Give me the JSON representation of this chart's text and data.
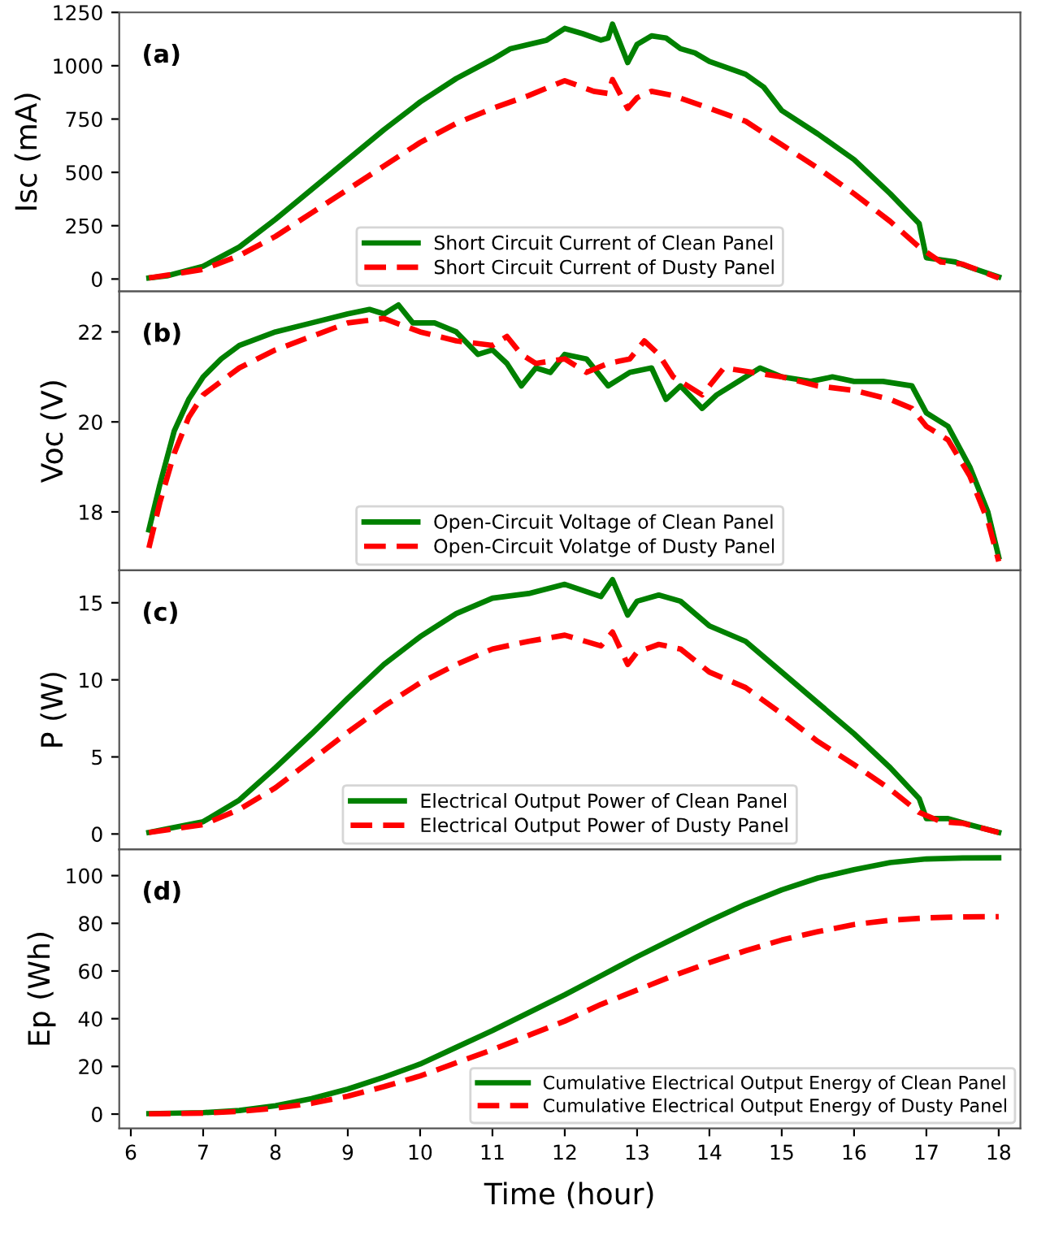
{
  "chart_data": [
    {
      "type": "line",
      "ylabel": "Isc (mA)",
      "annotations": [
        "(a)"
      ],
      "xlim": [
        5.84,
        18.3
      ],
      "xticks": [
        6,
        7,
        8,
        9,
        10,
        11,
        12,
        13,
        14,
        15,
        16,
        17,
        18
      ],
      "ylim": [
        -58,
        1250
      ],
      "yticks": [
        0,
        250,
        500,
        750,
        1000,
        1250
      ],
      "tick_labels": "y",
      "legend": "bottom",
      "grid": false,
      "series": [
        {
          "name": "Short Circuit Current of Clean Panel",
          "color": "#008000",
          "line_style": "solid",
          "x": [
            6.25,
            6.5,
            7,
            7.5,
            8,
            8.5,
            9,
            9.5,
            10,
            10.5,
            11,
            11.25,
            11.5,
            11.75,
            12,
            12.25,
            12.5,
            12.6,
            12.66,
            12.87,
            13,
            13.2,
            13.4,
            13.6,
            13.8,
            14,
            14.5,
            14.75,
            15,
            15.5,
            16,
            16.5,
            16.9,
            17.0,
            17.2,
            17.4,
            17.6,
            18
          ],
          "values": [
            5,
            15,
            60,
            150,
            280,
            420,
            560,
            700,
            830,
            940,
            1030,
            1080,
            1100,
            1120,
            1175,
            1150,
            1120,
            1130,
            1195,
            1015,
            1100,
            1140,
            1130,
            1080,
            1060,
            1020,
            960,
            900,
            790,
            680,
            560,
            400,
            260,
            100,
            90,
            80,
            55,
            10
          ]
        },
        {
          "name": "Short Circuit Current of Dusty Panel",
          "color": "#ff0000",
          "line_style": "dashed",
          "x": [
            6.25,
            7,
            7.5,
            8,
            8.5,
            9,
            9.5,
            10,
            10.5,
            11,
            11.5,
            12,
            12.4,
            12.6,
            12.66,
            12.87,
            13,
            13.2,
            13.5,
            14,
            14.5,
            15,
            15.5,
            16,
            16.5,
            16.9,
            17.2,
            17.5,
            18
          ],
          "values": [
            5,
            45,
            110,
            200,
            310,
            420,
            530,
            640,
            730,
            800,
            860,
            930,
            880,
            870,
            935,
            800,
            850,
            880,
            860,
            800,
            740,
            630,
            520,
            400,
            270,
            150,
            80,
            70,
            5
          ]
        }
      ]
    },
    {
      "type": "line",
      "ylabel": "Voc (V)",
      "annotations": [
        "(b)"
      ],
      "xlim": [
        5.84,
        18.3
      ],
      "xticks": [
        6,
        7,
        8,
        9,
        10,
        11,
        12,
        13,
        14,
        15,
        16,
        17,
        18
      ],
      "ylim": [
        16.7,
        22.9
      ],
      "yticks": [
        18,
        20,
        22
      ],
      "tick_labels": "y",
      "legend": "bottom",
      "grid": false,
      "series": [
        {
          "name": "Open-Circuit Voltage of Clean Panel",
          "color": "#008000",
          "line_style": "solid",
          "x": [
            6.25,
            6.4,
            6.6,
            6.8,
            7,
            7.25,
            7.5,
            8,
            8.5,
            9,
            9.3,
            9.5,
            9.7,
            9.9,
            10.2,
            10.5,
            10.8,
            11,
            11.2,
            11.4,
            11.6,
            11.8,
            12,
            12.3,
            12.6,
            12.9,
            13.2,
            13.4,
            13.6,
            13.9,
            14.1,
            14.4,
            14.7,
            15,
            15.4,
            15.7,
            16,
            16.4,
            16.8,
            17,
            17.3,
            17.6,
            17.85,
            18
          ],
          "values": [
            17.6,
            18.6,
            19.8,
            20.5,
            21.0,
            21.4,
            21.7,
            22.0,
            22.2,
            22.4,
            22.5,
            22.4,
            22.6,
            22.2,
            22.2,
            22.0,
            21.5,
            21.6,
            21.3,
            20.8,
            21.2,
            21.1,
            21.5,
            21.4,
            20.8,
            21.1,
            21.2,
            20.5,
            20.8,
            20.3,
            20.6,
            20.9,
            21.2,
            21.0,
            20.9,
            21.0,
            20.9,
            20.9,
            20.8,
            20.2,
            19.9,
            19.0,
            18.0,
            17.0
          ]
        },
        {
          "name": "Open-Circuit Volatge of Dusty Panel",
          "color": "#ff0000",
          "line_style": "dashed",
          "x": [
            6.25,
            6.4,
            6.6,
            6.8,
            7,
            7.5,
            8,
            8.5,
            9,
            9.5,
            10,
            10.5,
            11,
            11.2,
            11.4,
            11.6,
            12,
            12.3,
            12.6,
            12.9,
            13.1,
            13.3,
            13.5,
            13.9,
            14.2,
            14.6,
            15,
            15.5,
            16,
            16.5,
            16.8,
            17,
            17.3,
            17.6,
            17.85,
            18
          ],
          "values": [
            17.2,
            18.2,
            19.3,
            20.1,
            20.6,
            21.2,
            21.6,
            21.9,
            22.2,
            22.3,
            22.0,
            21.8,
            21.7,
            21.9,
            21.5,
            21.3,
            21.4,
            21.1,
            21.3,
            21.4,
            21.8,
            21.5,
            21.0,
            20.6,
            21.2,
            21.1,
            21.0,
            20.8,
            20.7,
            20.5,
            20.3,
            19.9,
            19.6,
            18.8,
            17.8,
            16.9
          ]
        }
      ]
    },
    {
      "type": "line",
      "ylabel": "P (W)",
      "annotations": [
        "(c)"
      ],
      "xlim": [
        5.84,
        18.3
      ],
      "xticks": [
        6,
        7,
        8,
        9,
        10,
        11,
        12,
        13,
        14,
        15,
        16,
        17,
        18
      ],
      "ylim": [
        -1.0,
        17.1
      ],
      "yticks": [
        0,
        5,
        10,
        15
      ],
      "tick_labels": "y",
      "legend": "bottom",
      "grid": false,
      "series": [
        {
          "name": "Electrical Output Power of Clean Panel",
          "color": "#008000",
          "line_style": "solid",
          "x": [
            6.25,
            7,
            7.5,
            8,
            8.5,
            9,
            9.5,
            10,
            10.5,
            11,
            11.5,
            12,
            12.5,
            12.66,
            12.87,
            13,
            13.3,
            13.6,
            14,
            14.5,
            15,
            15.5,
            16,
            16.5,
            16.9,
            17.0,
            17.3,
            17.6,
            18
          ],
          "values": [
            0.1,
            0.8,
            2.2,
            4.3,
            6.5,
            8.8,
            11.0,
            12.8,
            14.3,
            15.3,
            15.6,
            16.2,
            15.4,
            16.5,
            14.2,
            15.1,
            15.5,
            15.1,
            13.5,
            12.5,
            10.5,
            8.5,
            6.5,
            4.3,
            2.3,
            1.0,
            1.0,
            0.6,
            0.1
          ]
        },
        {
          "name": "Electrical Output Power of Dusty Panel",
          "color": "#ff0000",
          "line_style": "dashed",
          "x": [
            6.25,
            7,
            7.5,
            8,
            8.5,
            9,
            9.5,
            10,
            10.5,
            11,
            11.5,
            12,
            12.5,
            12.66,
            12.87,
            13,
            13.3,
            13.6,
            14,
            14.5,
            15,
            15.5,
            16,
            16.5,
            16.9,
            17.2,
            17.5,
            18
          ],
          "values": [
            0.1,
            0.6,
            1.6,
            3.0,
            4.8,
            6.6,
            8.3,
            9.8,
            11.0,
            12.0,
            12.5,
            12.9,
            12.2,
            13.1,
            11.0,
            11.8,
            12.3,
            12.0,
            10.5,
            9.5,
            7.8,
            6.0,
            4.5,
            2.9,
            1.4,
            0.8,
            0.7,
            0.1
          ]
        }
      ]
    },
    {
      "type": "line",
      "ylabel": "Ep (Wh)",
      "xlabel": "Time (hour)",
      "annotations": [
        "(d)"
      ],
      "xlim": [
        5.84,
        18.3
      ],
      "xticks": [
        6,
        7,
        8,
        9,
        10,
        11,
        12,
        13,
        14,
        15,
        16,
        17,
        18
      ],
      "ylim": [
        -6,
        111
      ],
      "yticks": [
        0,
        20,
        40,
        60,
        80,
        100
      ],
      "legend": "bottom right",
      "grid": false,
      "series": [
        {
          "name": "Cumulative Electrical Output Energy of Clean Panel",
          "color": "#008000",
          "line_style": "solid",
          "x": [
            6.25,
            7,
            7.5,
            8,
            8.5,
            9,
            9.5,
            10,
            10.5,
            11,
            11.5,
            12,
            12.5,
            13,
            13.5,
            14,
            14.5,
            15,
            15.5,
            16,
            16.5,
            17,
            17.5,
            18
          ],
          "values": [
            0.2,
            0.6,
            1.5,
            3.5,
            6.5,
            10.5,
            15.5,
            21,
            28,
            35,
            42.5,
            50,
            58,
            66,
            73.5,
            81,
            88,
            94,
            99,
            102.5,
            105.5,
            107,
            107.4,
            107.5
          ]
        },
        {
          "name": "Cumulative Electrical Output Energy of Dusty Panel",
          "color": "#ff0000",
          "line_style": "dashed",
          "x": [
            6.25,
            7,
            7.5,
            8,
            8.5,
            9,
            9.5,
            10,
            10.5,
            11,
            11.5,
            12,
            12.5,
            13,
            13.5,
            14,
            14.5,
            15,
            15.5,
            16,
            16.5,
            17,
            17.5,
            18
          ],
          "values": [
            0.1,
            0.4,
            1.1,
            2.5,
            4.5,
            7.5,
            11.5,
            16,
            21.5,
            27,
            33,
            39,
            46,
            52,
            58,
            63.5,
            68.5,
            73,
            76.5,
            79.5,
            81.3,
            82.3,
            82.7,
            82.8
          ]
        }
      ]
    }
  ]
}
